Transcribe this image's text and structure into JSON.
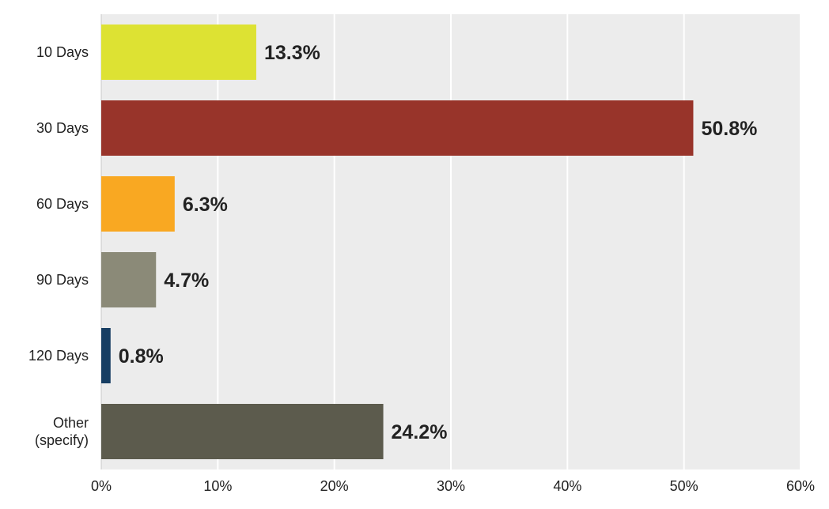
{
  "chart_data": {
    "type": "bar",
    "orientation": "horizontal",
    "categories": [
      [
        "10 Days"
      ],
      [
        "30 Days"
      ],
      [
        "60 Days"
      ],
      [
        "90 Days"
      ],
      [
        "120 Days"
      ],
      [
        "Other",
        "(specify)"
      ]
    ],
    "values": [
      13.3,
      50.8,
      6.3,
      4.7,
      0.8,
      24.2
    ],
    "value_labels": [
      "13.3%",
      "50.8%",
      "6.3%",
      "4.7%",
      "0.8%",
      "24.2%"
    ],
    "colors": [
      "#dde233",
      "#98342a",
      "#f9a822",
      "#8b8a78",
      "#173e63",
      "#5c5b4d"
    ],
    "xticks": [
      0,
      10,
      20,
      30,
      40,
      50,
      60
    ],
    "xtick_labels": [
      "0%",
      "10%",
      "20%",
      "30%",
      "40%",
      "50%",
      "60%"
    ],
    "xlim": [
      0,
      60
    ],
    "grid": true,
    "title": "",
    "xlabel": "",
    "ylabel": ""
  }
}
